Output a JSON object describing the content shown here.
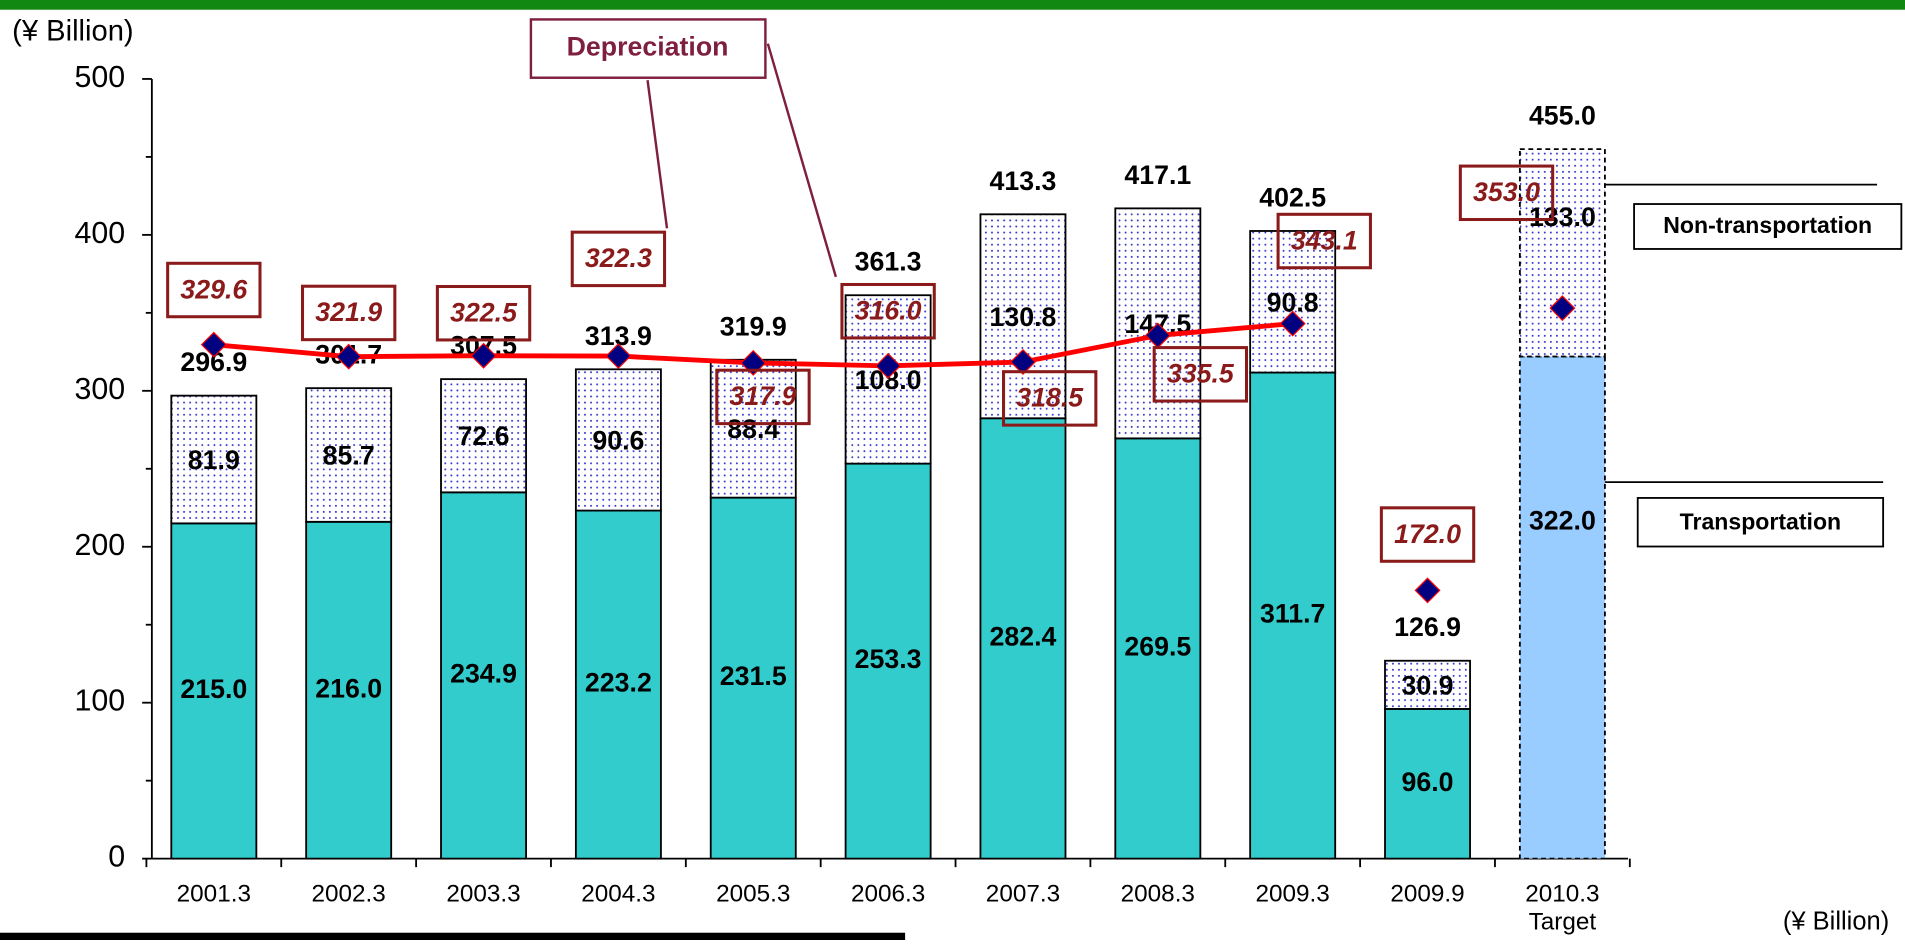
{
  "chart_data": {
    "type": "stacked_bar_line",
    "title": "Depreciation",
    "y_unit": "(¥ Billion)",
    "x_unit": "(¥ Billion)",
    "categories": [
      "2001.3",
      "2002.3",
      "2003.3",
      "2004.3",
      "2005.3",
      "2006.3",
      "2007.3",
      "2008.3",
      "2009.3",
      "2009.9",
      "2010.3"
    ],
    "category_note": "Target",
    "ylim": [
      0,
      500
    ],
    "yticks": [
      0,
      100,
      200,
      300,
      400,
      500
    ],
    "series": [
      {
        "name": "Transportation",
        "color": "#33CCCC",
        "target_color": "#99CCFF",
        "values": [
          215.0,
          216.0,
          234.9,
          223.2,
          231.5,
          253.3,
          282.4,
          269.5,
          311.7,
          96.0,
          322.0
        ],
        "value_labels": [
          "215.0",
          "216.0",
          "234.9",
          "223.2",
          "231.5",
          "253.3",
          "282.4",
          "269.5",
          "311.7",
          "96.0",
          "322.0"
        ]
      },
      {
        "name": "Non-transportation",
        "color": "#3333CC",
        "values": [
          81.9,
          85.7,
          72.6,
          90.6,
          88.4,
          108.0,
          130.8,
          147.5,
          90.8,
          30.9,
          133.0
        ],
        "value_labels": [
          "81.9",
          "85.7",
          "72.6",
          "90.6",
          "88.4",
          "108.0",
          "130.8",
          "147.5",
          "90.8",
          "30.9",
          "133.0"
        ]
      }
    ],
    "totals": [
      296.9,
      301.7,
      307.5,
      313.9,
      319.9,
      361.3,
      413.3,
      417.1,
      402.5,
      126.9,
      455.0
    ],
    "total_labels": [
      "296.9",
      "301.7",
      "307.5",
      "313.9",
      "319.9",
      "361.3",
      "413.3",
      "417.1",
      "402.5",
      "126.9",
      "455.0"
    ],
    "line": {
      "name": "Depreciation",
      "color": "#FF0000",
      "marker_color": "#000080",
      "values": [
        329.6,
        321.9,
        322.5,
        322.3,
        317.9,
        316.0,
        318.5,
        335.5,
        343.1,
        172.0,
        353.0
      ],
      "value_labels": [
        "329.6",
        "321.9",
        "322.5",
        "322.3",
        "317.9",
        "316.0",
        "318.5",
        "335.5",
        "343.1",
        "172.0",
        "353.0"
      ],
      "connected": [
        true,
        true,
        true,
        true,
        true,
        true,
        true,
        true,
        true,
        false,
        false
      ]
    }
  }
}
